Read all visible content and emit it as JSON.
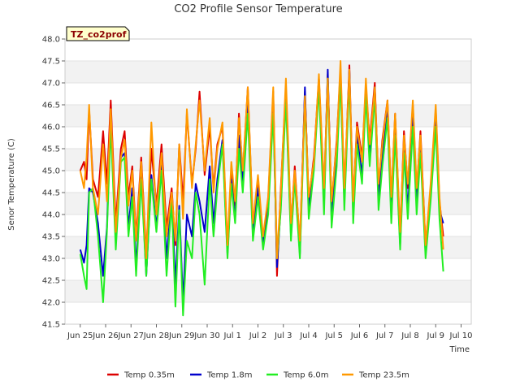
{
  "chart_data": {
    "type": "line",
    "title": "CO2 Profile Sensor Temperature",
    "xlabel": "Time",
    "ylabel": "Senor Temperature (C)",
    "site_tag": "TZ_co2prof",
    "ylim": [
      41.5,
      48.0
    ],
    "xlim": [
      0,
      16
    ],
    "y_ticks": [
      "41.5",
      "42.0",
      "42.5",
      "43.0",
      "43.5",
      "44.0",
      "44.5",
      "45.0",
      "45.5",
      "46.0",
      "46.5",
      "47.0",
      "47.5",
      "48.0"
    ],
    "x_ticks": [
      "Jun 25",
      "Jun 26",
      "Jun 27",
      "Jun 28",
      "Jun 29",
      "Jun 30",
      "Jul 1",
      "Jul 2",
      "Jul 3",
      "Jul 4",
      "Jul 5",
      "Jul 6",
      "Jul 7",
      "Jul 8",
      "Jul 9",
      "Jul 10"
    ],
    "x_tick_positions": [
      0.6,
      1.6,
      2.6,
      3.6,
      4.6,
      5.6,
      6.6,
      7.6,
      8.6,
      9.6,
      10.6,
      11.6,
      12.6,
      13.6,
      14.6,
      15.6
    ],
    "grid": "horizontal bands",
    "legend_placement": "bottom",
    "series": [
      {
        "name": "Temp 0.35m",
        "color": "#dd0000",
        "x": [
          0.6,
          0.75,
          0.85,
          0.95,
          1.1,
          1.3,
          1.5,
          1.65,
          1.8,
          2.0,
          2.2,
          2.35,
          2.5,
          2.65,
          2.8,
          3.0,
          3.2,
          3.4,
          3.6,
          3.8,
          4.0,
          4.2,
          4.35,
          4.5,
          4.65,
          4.8,
          5.0,
          5.15,
          5.3,
          5.5,
          5.7,
          5.85,
          6.0,
          6.2,
          6.4,
          6.55,
          6.7,
          6.85,
          7.0,
          7.2,
          7.4,
          7.6,
          7.8,
          8.0,
          8.2,
          8.35,
          8.5,
          8.7,
          8.9,
          9.05,
          9.25,
          9.45,
          9.6,
          9.8,
          10.0,
          10.2,
          10.35,
          10.5,
          10.7,
          10.85,
          11.0,
          11.2,
          11.35,
          11.5,
          11.7,
          11.85,
          12.0,
          12.2,
          12.35,
          12.5,
          12.7,
          12.85,
          13.0,
          13.2,
          13.35,
          13.5,
          13.7,
          13.85,
          14.0,
          14.2,
          14.4,
          14.6,
          14.75,
          14.9
        ],
        "y": [
          45.0,
          45.2,
          44.8,
          46.4,
          44.8,
          44.4,
          45.9,
          44.7,
          46.6,
          43.8,
          45.5,
          45.9,
          44.4,
          45.1,
          43.5,
          45.3,
          43.1,
          45.5,
          44.2,
          45.6,
          43.7,
          44.6,
          43.3,
          45.6,
          44.3,
          46.3,
          44.7,
          45.5,
          46.8,
          44.9,
          46.0,
          44.6,
          45.6,
          46.0,
          43.2,
          45.0,
          44.2,
          46.3,
          44.9,
          46.9,
          43.7,
          44.8,
          43.4,
          44.3,
          46.8,
          42.6,
          44.6,
          46.9,
          43.7,
          45.1,
          43.3,
          46.8,
          44.3,
          45.3,
          47.1,
          44.5,
          47.2,
          44.2,
          45.7,
          47.3,
          44.5,
          47.4,
          44.2,
          46.1,
          45.3,
          46.9,
          45.7,
          47.0,
          44.6,
          45.7,
          46.6,
          44.3,
          46.3,
          43.5,
          45.9,
          44.6,
          46.5,
          44.5,
          45.9,
          43.3,
          44.6,
          46.4,
          44.3,
          43.5
        ]
      },
      {
        "name": "Temp 1.8m",
        "color": "#0000cc",
        "x": [
          0.6,
          0.75,
          0.85,
          0.95,
          1.1,
          1.3,
          1.5,
          1.65,
          1.8,
          2.0,
          2.2,
          2.35,
          2.5,
          2.65,
          2.8,
          3.0,
          3.2,
          3.4,
          3.6,
          3.8,
          4.0,
          4.2,
          4.35,
          4.5,
          4.65,
          4.8,
          5.0,
          5.15,
          5.3,
          5.5,
          5.7,
          5.85,
          6.0,
          6.2,
          6.4,
          6.55,
          6.7,
          6.85,
          7.0,
          7.2,
          7.4,
          7.6,
          7.8,
          8.0,
          8.2,
          8.35,
          8.5,
          8.7,
          8.9,
          9.05,
          9.25,
          9.45,
          9.6,
          9.8,
          10.0,
          10.2,
          10.35,
          10.5,
          10.7,
          10.85,
          11.0,
          11.2,
          11.35,
          11.5,
          11.7,
          11.85,
          12.0,
          12.2,
          12.35,
          12.5,
          12.7,
          12.85,
          13.0,
          13.2,
          13.35,
          13.5,
          13.7,
          13.85,
          14.0,
          14.2,
          14.4,
          14.6,
          14.75,
          14.9
        ],
        "y": [
          43.2,
          42.9,
          43.3,
          44.6,
          44.5,
          43.8,
          42.6,
          43.7,
          46.3,
          43.4,
          45.3,
          45.4,
          43.7,
          44.6,
          42.8,
          45.0,
          42.6,
          44.9,
          43.7,
          45.2,
          43.0,
          44.4,
          42.4,
          44.2,
          42.0,
          44.0,
          43.5,
          44.7,
          44.3,
          43.6,
          45.1,
          43.8,
          44.8,
          45.7,
          43.1,
          44.8,
          43.9,
          45.8,
          44.7,
          46.5,
          43.5,
          44.6,
          43.3,
          44.1,
          46.6,
          42.8,
          44.2,
          46.8,
          43.5,
          44.9,
          43.1,
          46.9,
          44.1,
          45.1,
          47.1,
          44.2,
          47.3,
          43.9,
          45.3,
          47.2,
          44.3,
          47.3,
          44.0,
          45.8,
          44.9,
          46.8,
          45.3,
          46.9,
          44.3,
          45.3,
          46.4,
          44.0,
          46.0,
          43.3,
          45.6,
          44.1,
          46.2,
          44.2,
          45.6,
          43.1,
          44.4,
          46.2,
          44.1,
          43.8
        ]
      },
      {
        "name": "Temp 6.0m",
        "color": "#22ee22",
        "x": [
          0.6,
          0.75,
          0.85,
          0.95,
          1.1,
          1.3,
          1.5,
          1.65,
          1.8,
          2.0,
          2.2,
          2.35,
          2.5,
          2.65,
          2.8,
          3.0,
          3.2,
          3.4,
          3.6,
          3.8,
          4.0,
          4.2,
          4.35,
          4.5,
          4.65,
          4.8,
          5.0,
          5.15,
          5.3,
          5.5,
          5.7,
          5.85,
          6.0,
          6.2,
          6.4,
          6.55,
          6.7,
          6.85,
          7.0,
          7.2,
          7.4,
          7.6,
          7.8,
          8.0,
          8.2,
          8.35,
          8.5,
          8.7,
          8.9,
          9.05,
          9.25,
          9.45,
          9.6,
          9.8,
          10.0,
          10.2,
          10.35,
          10.5,
          10.7,
          10.85,
          11.0,
          11.2,
          11.35,
          11.5,
          11.7,
          11.85,
          12.0,
          12.2,
          12.35,
          12.5,
          12.7,
          12.85,
          13.0,
          13.2,
          13.35,
          13.5,
          13.7,
          13.85,
          14.0,
          14.2,
          14.4,
          14.6,
          14.75,
          14.9
        ],
        "y": [
          43.1,
          42.6,
          42.3,
          44.5,
          44.6,
          43.5,
          42.0,
          43.6,
          46.0,
          43.2,
          45.2,
          45.3,
          43.5,
          44.4,
          42.6,
          44.8,
          42.6,
          44.8,
          43.6,
          45.0,
          42.6,
          44.3,
          41.9,
          44.1,
          41.7,
          43.4,
          43.0,
          44.5,
          44.0,
          42.4,
          44.8,
          43.5,
          44.6,
          45.6,
          43.0,
          44.7,
          43.8,
          45.5,
          44.5,
          46.3,
          43.4,
          44.4,
          43.2,
          44.0,
          46.3,
          43.0,
          44.1,
          46.6,
          43.4,
          44.8,
          43.0,
          46.6,
          43.9,
          45.0,
          46.9,
          44.0,
          47.1,
          43.7,
          45.1,
          47.1,
          44.1,
          47.1,
          43.8,
          45.6,
          44.7,
          46.7,
          45.1,
          46.7,
          44.1,
          45.1,
          46.2,
          43.8,
          45.8,
          43.2,
          45.4,
          43.9,
          46.0,
          44.0,
          45.4,
          43.0,
          44.3,
          46.0,
          43.9,
          42.7
        ]
      },
      {
        "name": "Temp 23.5m",
        "color": "#ff9900",
        "x": [
          0.6,
          0.75,
          0.85,
          0.95,
          1.1,
          1.3,
          1.5,
          1.65,
          1.8,
          2.0,
          2.2,
          2.35,
          2.5,
          2.65,
          2.8,
          3.0,
          3.2,
          3.4,
          3.6,
          3.8,
          4.0,
          4.2,
          4.35,
          4.5,
          4.65,
          4.8,
          5.0,
          5.15,
          5.3,
          5.5,
          5.7,
          5.85,
          6.0,
          6.2,
          6.4,
          6.55,
          6.7,
          6.85,
          7.0,
          7.2,
          7.4,
          7.6,
          7.8,
          8.0,
          8.2,
          8.35,
          8.5,
          8.7,
          8.9,
          9.05,
          9.25,
          9.45,
          9.6,
          9.8,
          10.0,
          10.2,
          10.35,
          10.5,
          10.7,
          10.85,
          11.0,
          11.2,
          11.35,
          11.5,
          11.7,
          11.85,
          12.0,
          12.2,
          12.35,
          12.5,
          12.7,
          12.85,
          13.0,
          13.2,
          13.35,
          13.5,
          13.7,
          13.85,
          14.0,
          14.2,
          14.4,
          14.6,
          14.75,
          14.9
        ],
        "y": [
          45.0,
          44.6,
          45.3,
          46.5,
          44.6,
          44.0,
          45.6,
          44.3,
          46.4,
          43.6,
          45.3,
          45.7,
          44.2,
          45.0,
          43.4,
          45.2,
          43.0,
          46.1,
          44.0,
          45.4,
          43.5,
          44.5,
          43.4,
          45.6,
          43.9,
          46.4,
          44.6,
          45.6,
          46.6,
          45.0,
          46.2,
          44.5,
          45.5,
          46.1,
          43.3,
          45.2,
          44.3,
          46.2,
          45.0,
          46.9,
          43.8,
          44.9,
          43.5,
          44.4,
          46.9,
          43.0,
          44.5,
          47.1,
          43.8,
          45.0,
          43.4,
          46.7,
          44.4,
          45.2,
          47.2,
          44.6,
          47.1,
          44.3,
          45.6,
          47.5,
          44.6,
          47.3,
          44.3,
          46.0,
          45.2,
          47.1,
          45.6,
          46.9,
          44.7,
          45.6,
          46.6,
          44.4,
          46.3,
          43.6,
          45.8,
          44.7,
          46.6,
          44.6,
          45.8,
          43.3,
          44.7,
          46.5,
          44.4,
          43.2
        ]
      }
    ]
  }
}
